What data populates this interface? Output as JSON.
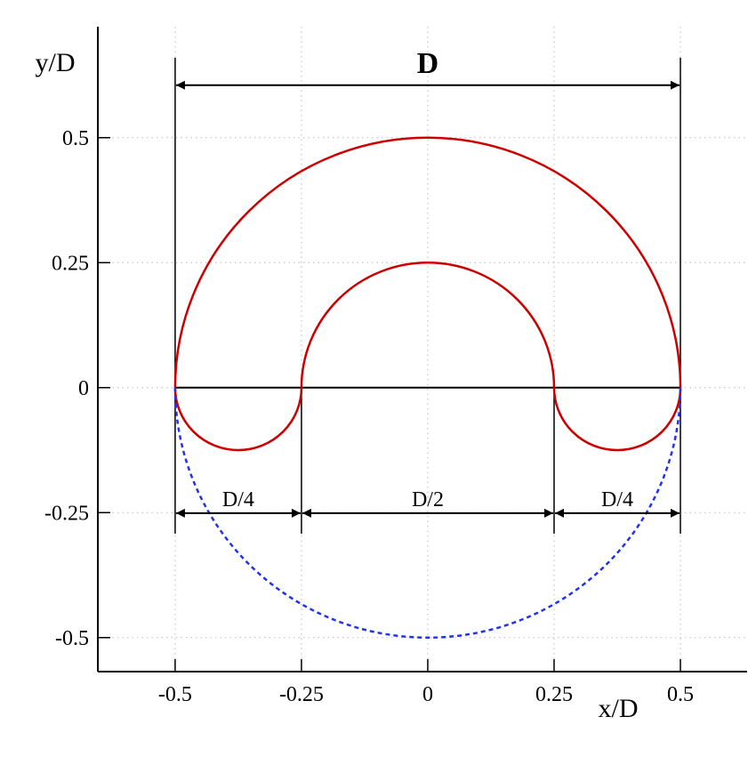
{
  "chart_data": {
    "type": "arcs",
    "x_label": "x/D",
    "y_label": "y/D",
    "xlim": [
      -0.653,
      0.632
    ],
    "ylim": [
      -0.568,
      0.722
    ],
    "xticks": [
      -0.5,
      -0.25,
      0,
      0.25,
      0.5
    ],
    "yticks": [
      -0.5,
      -0.25,
      0,
      0.25,
      0.5
    ],
    "grid": true,
    "arcs": [
      {
        "cx": 0,
        "cy": 0,
        "r": 0.5,
        "side": "upper",
        "color": "#cc0000",
        "dashed": false
      },
      {
        "cx": 0,
        "cy": 0,
        "r": 0.25,
        "side": "upper",
        "color": "#cc0000",
        "dashed": false
      },
      {
        "cx": -0.375,
        "cy": 0,
        "r": 0.125,
        "side": "lower",
        "color": "#cc0000",
        "dashed": false
      },
      {
        "cx": 0.375,
        "cy": 0,
        "r": 0.125,
        "side": "lower",
        "color": "#cc0000",
        "dashed": false
      },
      {
        "cx": 0,
        "cy": 0,
        "r": 0.5,
        "side": "lower",
        "color": "#2233ee",
        "dashed": true
      }
    ],
    "baseline": {
      "x": [
        -0.5,
        0.5
      ],
      "y": 0
    },
    "extension_lines": [
      {
        "x": -0.5,
        "y": [
          0.66,
          -0.292
        ]
      },
      {
        "x": 0.5,
        "y": [
          0.66,
          -0.292
        ]
      },
      {
        "x": -0.25,
        "y": [
          0,
          -0.292
        ]
      },
      {
        "x": 0.25,
        "y": [
          0,
          -0.292
        ]
      }
    ],
    "dimensions": [
      {
        "label": "D",
        "from": -0.5,
        "to": 0.5,
        "y": 0.605,
        "bold": true
      },
      {
        "label": "D/4",
        "from": -0.5,
        "to": -0.25,
        "y": -0.251,
        "bold": false
      },
      {
        "label": "D/2",
        "from": -0.25,
        "to": 0.25,
        "y": -0.251,
        "bold": false
      },
      {
        "label": "D/4",
        "from": 0.25,
        "to": 0.5,
        "y": -0.251,
        "bold": false
      }
    ]
  }
}
